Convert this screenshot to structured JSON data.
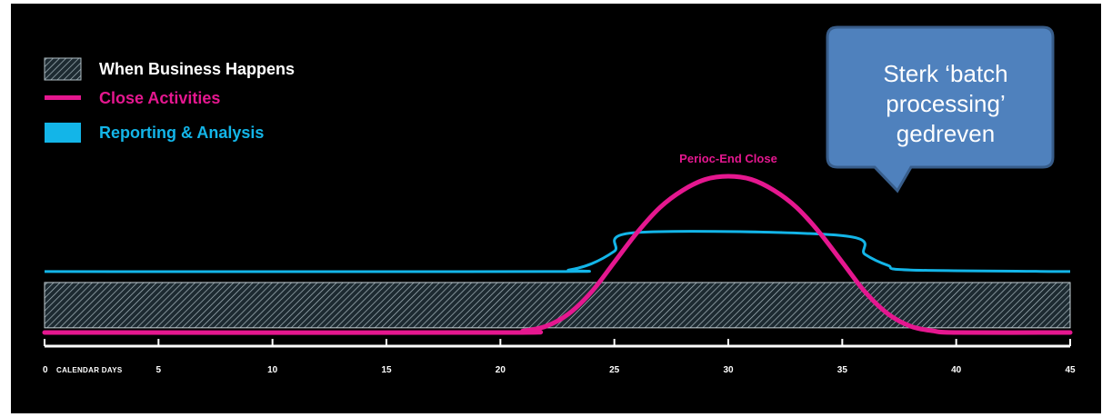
{
  "legend": {
    "business": {
      "label": "When Business Happens",
      "color": "#ffffff"
    },
    "close": {
      "label": "Close Activities",
      "color": "#e5178f"
    },
    "reporting": {
      "label": "Reporting & Analysis",
      "color": "#13b5e8"
    }
  },
  "axis": {
    "caption": "CALENDAR DAYS"
  },
  "annotation": {
    "peak_label": "Perioc-End Close",
    "color": "#e5178f"
  },
  "callout": {
    "lines": [
      "Sterk ‘batch",
      "processing’",
      "gedreven"
    ],
    "fill": "#4f81bd",
    "border": "#385d8a"
  },
  "chart_data": {
    "type": "line",
    "title": "",
    "xlabel": "CALENDAR DAYS",
    "ylabel": "",
    "xlim": [
      0,
      45
    ],
    "x_ticks": [
      0,
      5,
      10,
      15,
      20,
      25,
      30,
      35,
      40,
      45
    ],
    "y_unit": "relative activity level (0 = Close baseline, 1 = Close peak)",
    "ylim": [
      0,
      1
    ],
    "grid": false,
    "legend_position": "top-left",
    "series": [
      {
        "name": "Close Activities",
        "color": "#e5178f",
        "x": [
          0,
          20,
          21,
          22,
          23,
          24,
          25,
          26,
          27,
          28,
          29,
          30,
          31,
          32,
          33,
          34,
          35,
          36,
          37,
          38,
          39,
          40,
          45
        ],
        "y": [
          0,
          0,
          0.01,
          0.04,
          0.12,
          0.26,
          0.45,
          0.64,
          0.8,
          0.91,
          0.98,
          1.0,
          0.98,
          0.91,
          0.8,
          0.64,
          0.45,
          0.26,
          0.12,
          0.04,
          0.01,
          0,
          0
        ]
      },
      {
        "name": "Reporting & Analysis",
        "color": "#13b5e8",
        "x": [
          0,
          22,
          23,
          24,
          25,
          26,
          35,
          36,
          37,
          38,
          45
        ],
        "y": [
          0.39,
          0.39,
          0.4,
          0.44,
          0.52,
          0.64,
          0.62,
          0.5,
          0.43,
          0.4,
          0.39
        ]
      },
      {
        "name": "When Business Happens",
        "pattern": "hatched",
        "x": [
          0,
          45
        ],
        "y_band": [
          0.03,
          0.32
        ]
      }
    ]
  }
}
